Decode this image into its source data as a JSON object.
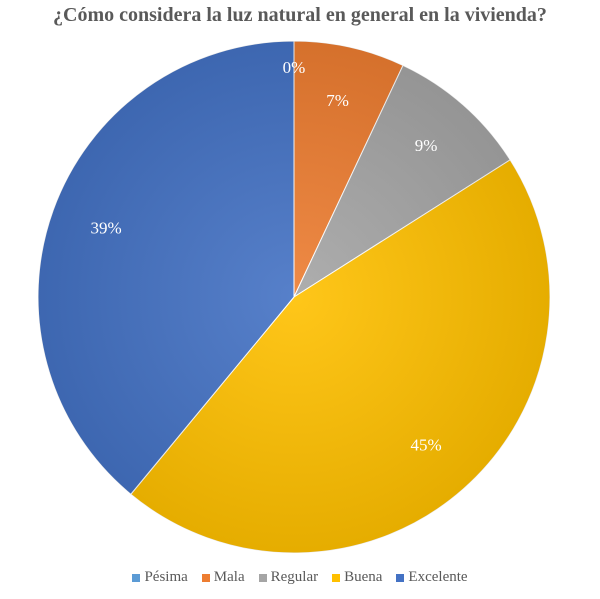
{
  "chart_data": {
    "type": "pie",
    "title": "¿Cómo considera la luz natural en general en la vivienda?",
    "categories": [
      "Pésima",
      "Mala",
      "Regular",
      "Buena",
      "Excelente"
    ],
    "values": [
      0,
      7,
      9,
      45,
      39
    ],
    "data_labels": [
      "0%",
      "7%",
      "9%",
      "45%",
      "39%"
    ],
    "colors": [
      "#5b9bd5",
      "#ed7d31",
      "#a5a5a5",
      "#ffc000",
      "#4472c4"
    ],
    "legend_position": "bottom",
    "start_angle": "12 o'clock, clockwise"
  }
}
